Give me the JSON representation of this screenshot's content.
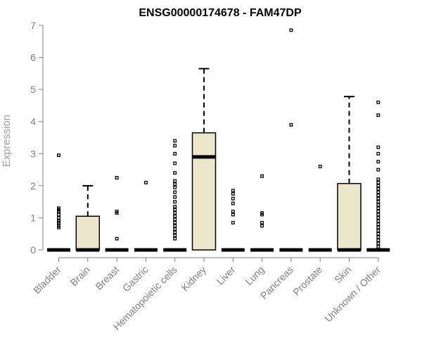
{
  "chart_data": {
    "type": "boxplot",
    "title": "ENSG00000174678 - FAM47DP",
    "ylabel": "Expression",
    "xlabel": "",
    "ylim": [
      0,
      7
    ],
    "yticks": [
      0,
      1,
      2,
      3,
      4,
      5,
      6,
      7
    ],
    "grid": false,
    "categories": [
      "Bladder",
      "Brain",
      "Breast",
      "Gastric",
      "Hematopoietic cells",
      "Kidney",
      "Liver",
      "Lung",
      "Pancreas",
      "Prostate",
      "Skin",
      "Unknown / Other"
    ],
    "boxes": [
      {
        "min": 0,
        "q1": 0,
        "median": 0,
        "q3": 0,
        "max": 0,
        "outliers": [
          0.7,
          0.75,
          0.85,
          0.9,
          1.0,
          1.1,
          1.2,
          1.25,
          1.3,
          2.95
        ]
      },
      {
        "min": 0,
        "q1": 0,
        "median": 0,
        "q3": 1.05,
        "max": 2.0,
        "outliers": []
      },
      {
        "min": 0,
        "q1": 0,
        "median": 0,
        "q3": 0,
        "max": 0,
        "outliers": [
          0.35,
          1.15,
          1.2,
          2.25
        ]
      },
      {
        "min": 0,
        "q1": 0,
        "median": 0,
        "q3": 0,
        "max": 0,
        "outliers": [
          2.1
        ]
      },
      {
        "min": 0,
        "q1": 0,
        "median": 0,
        "q3": 0,
        "max": 0,
        "outliers": [
          0.35,
          0.45,
          0.55,
          0.65,
          0.75,
          0.85,
          0.95,
          1.05,
          1.15,
          1.25,
          1.35,
          1.5,
          1.65,
          1.8,
          1.95,
          2.05,
          2.15,
          2.4,
          2.7,
          3.0,
          3.25,
          3.4
        ]
      },
      {
        "min": 0,
        "q1": 0,
        "median": 2.9,
        "q3": 3.65,
        "max": 5.65,
        "outliers": []
      },
      {
        "min": 0,
        "q1": 0,
        "median": 0,
        "q3": 0,
        "max": 0,
        "outliers": [
          0.85,
          1.1,
          1.2,
          1.45,
          1.6,
          1.75,
          1.85
        ]
      },
      {
        "min": 0,
        "q1": 0,
        "median": 0,
        "q3": 0,
        "max": 0,
        "outliers": [
          0.75,
          0.85,
          1.1,
          1.15,
          2.3
        ]
      },
      {
        "min": 0,
        "q1": 0,
        "median": 0,
        "q3": 0,
        "max": 0,
        "outliers": [
          3.9,
          6.85
        ]
      },
      {
        "min": 0,
        "q1": 0,
        "median": 0,
        "q3": 0,
        "max": 0,
        "outliers": [
          2.6
        ]
      },
      {
        "min": 0,
        "q1": 0,
        "median": 0,
        "q3": 2.07,
        "max": 4.78,
        "outliers": []
      },
      {
        "min": 0,
        "q1": 0,
        "median": 0,
        "q3": 0,
        "max": 0,
        "outliers": [
          0.1,
          0.2,
          0.3,
          0.4,
          0.5,
          0.6,
          0.7,
          0.8,
          0.9,
          1.0,
          1.1,
          1.2,
          1.3,
          1.4,
          1.5,
          1.6,
          1.7,
          1.8,
          1.9,
          2.0,
          2.1,
          2.2,
          2.5,
          2.75,
          3.0,
          3.2,
          4.2,
          4.6
        ]
      }
    ],
    "colors": {
      "box_fill": "#ece6cb",
      "axis": "#808080",
      "marks": "#000000"
    }
  }
}
